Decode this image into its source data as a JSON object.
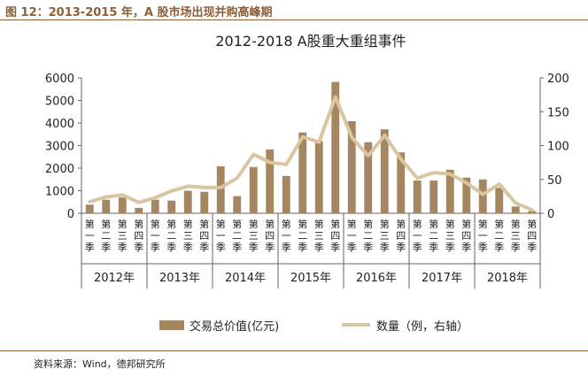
{
  "figure_title": "图 12：2013-2015 年，A 股市场出现并购高峰期",
  "source": "资料来源：Wind，德邦研究所",
  "colors": {
    "bar": "#a48660",
    "line": "#d9c6a0",
    "rule": "#8c5f38",
    "axis": "#666666"
  },
  "chart_data": {
    "type": "bar+line",
    "title": "2012-2018 A股重大重组事件",
    "categories": [
      "第一季",
      "第二季",
      "第三季",
      "第四季",
      "第一季",
      "第二季",
      "第三季",
      "第四季",
      "第一季",
      "第二季",
      "第三季",
      "第四季",
      "第一季",
      "第二季",
      "第三季",
      "第四季",
      "第一季",
      "第二季",
      "第三季",
      "第四季",
      "第一季",
      "第二季",
      "第三季",
      "第四季",
      "第一季",
      "第二季",
      "第三季",
      "第四季"
    ],
    "groups": [
      "2012年",
      "2013年",
      "2014年",
      "2015年",
      "2016年",
      "2017年",
      "2018年"
    ],
    "series": [
      {
        "name": "交易总价值(亿元)",
        "type": "bar",
        "axis": "left",
        "values": [
          380,
          600,
          700,
          240,
          600,
          560,
          1000,
          950,
          2080,
          760,
          2050,
          2830,
          1650,
          3580,
          3200,
          5820,
          4080,
          3150,
          3720,
          2700,
          1450,
          1450,
          1930,
          1580,
          1500,
          1130,
          300,
          100
        ]
      },
      {
        "name": "数量（例，右轴）",
        "type": "line",
        "axis": "right",
        "values": [
          17,
          24,
          27,
          16,
          23,
          33,
          40,
          38,
          38,
          52,
          87,
          75,
          72,
          113,
          105,
          172,
          112,
          85,
          115,
          80,
          52,
          60,
          58,
          45,
          28,
          43,
          15,
          5
        ]
      }
    ],
    "y_left": {
      "min": 0,
      "max": 6000,
      "ticks": [
        0,
        1000,
        2000,
        3000,
        4000,
        5000,
        6000
      ]
    },
    "y_right": {
      "min": 0,
      "max": 200,
      "ticks": [
        0,
        50,
        100,
        150,
        200
      ]
    },
    "legend_position": "bottom",
    "grid": false
  }
}
